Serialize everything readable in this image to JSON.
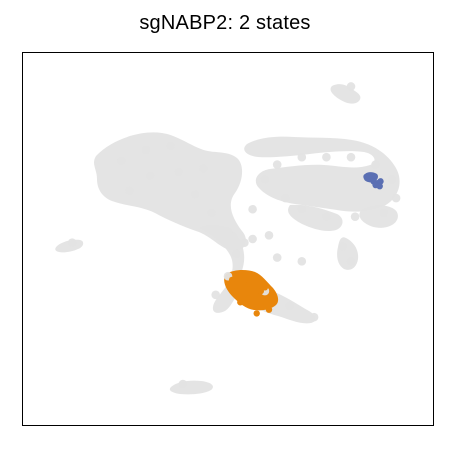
{
  "chart_data": {
    "type": "scatter",
    "title": "sgNABP2: 2 states",
    "xlabel": "",
    "ylabel": "",
    "axes_ticks": false,
    "grid": false,
    "legend": "none",
    "xlim": [
      0,
      10
    ],
    "ylim": [
      0,
      10
    ],
    "colors": {
      "background_cells": "#e3e3e3",
      "state_1": "#e8860c",
      "state_2": "#5a6fb3"
    },
    "series": [
      {
        "points": [
          {
            "x": 2.4,
            "y": 7.1
          },
          {
            "x": 3.0,
            "y": 7.4
          },
          {
            "x": 3.6,
            "y": 7.5
          },
          {
            "x": 3.1,
            "y": 6.7
          },
          {
            "x": 2.6,
            "y": 6.3
          },
          {
            "x": 3.8,
            "y": 6.8
          },
          {
            "x": 4.2,
            "y": 6.2
          },
          {
            "x": 4.6,
            "y": 5.7
          },
          {
            "x": 5.0,
            "y": 5.2
          },
          {
            "x": 5.2,
            "y": 4.6
          },
          {
            "x": 5.0,
            "y": 4.0
          },
          {
            "x": 4.7,
            "y": 3.5
          },
          {
            "x": 5.4,
            "y": 4.9
          },
          {
            "x": 5.6,
            "y": 5.8
          },
          {
            "x": 5.9,
            "y": 6.6
          },
          {
            "x": 6.2,
            "y": 7.0
          },
          {
            "x": 6.8,
            "y": 7.2
          },
          {
            "x": 7.4,
            "y": 7.2
          },
          {
            "x": 8.0,
            "y": 7.2
          },
          {
            "x": 8.6,
            "y": 7.0
          },
          {
            "x": 9.0,
            "y": 6.6
          },
          {
            "x": 9.1,
            "y": 6.1
          },
          {
            "x": 8.8,
            "y": 5.7
          },
          {
            "x": 8.1,
            "y": 5.6
          },
          {
            "x": 7.4,
            "y": 5.6
          },
          {
            "x": 6.8,
            "y": 5.8
          },
          {
            "x": 6.4,
            "y": 6.1
          },
          {
            "x": 6.0,
            "y": 5.1
          },
          {
            "x": 6.2,
            "y": 4.5
          },
          {
            "x": 6.8,
            "y": 4.4
          },
          {
            "x": 7.8,
            "y": 4.8
          },
          {
            "x": 8.0,
            "y": 4.4
          },
          {
            "x": 5.9,
            "y": 3.6
          },
          {
            "x": 6.5,
            "y": 3.2
          },
          {
            "x": 7.1,
            "y": 2.9
          },
          {
            "x": 1.2,
            "y": 4.9
          },
          {
            "x": 8.0,
            "y": 9.1
          },
          {
            "x": 3.9,
            "y": 1.1
          },
          {
            "x": 5.6,
            "y": 5.0
          },
          {
            "x": 4.4,
            "y": 6.9
          }
        ]
      },
      {
        "points": [
          {
            "x": 5.1,
            "y": 3.9
          },
          {
            "x": 5.5,
            "y": 3.8
          },
          {
            "x": 5.8,
            "y": 3.6
          },
          {
            "x": 6.1,
            "y": 3.4
          },
          {
            "x": 5.2,
            "y": 3.6
          },
          {
            "x": 5.5,
            "y": 3.4
          },
          {
            "x": 5.8,
            "y": 3.2
          },
          {
            "x": 6.0,
            "y": 3.1
          },
          {
            "x": 5.4,
            "y": 3.9
          },
          {
            "x": 5.9,
            "y": 3.7
          },
          {
            "x": 5.3,
            "y": 3.3
          },
          {
            "x": 5.7,
            "y": 3.0
          }
        ]
      },
      {
        "points": [
          {
            "x": 8.55,
            "y": 6.55
          },
          {
            "x": 8.65,
            "y": 6.5
          },
          {
            "x": 8.72,
            "y": 6.55
          },
          {
            "x": 8.6,
            "y": 6.45
          },
          {
            "x": 8.7,
            "y": 6.42
          }
        ]
      }
    ]
  }
}
